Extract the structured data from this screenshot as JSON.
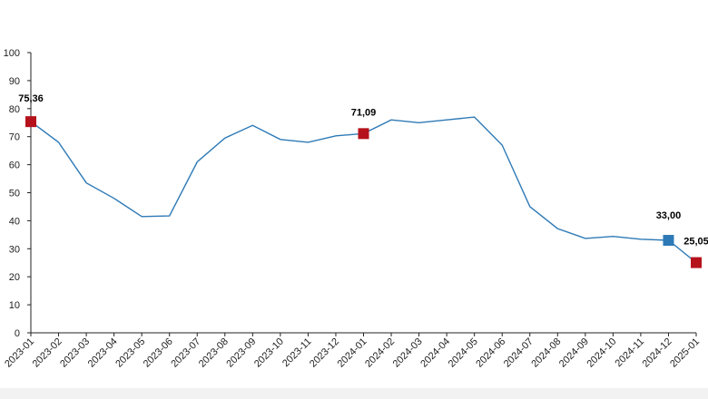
{
  "chart_data": {
    "type": "line",
    "title": "",
    "xlabel": "",
    "ylabel": "",
    "categories": [
      "2023-01",
      "2023-02",
      "2023-03",
      "2023-04",
      "2023-05",
      "2023-06",
      "2023-07",
      "2023-08",
      "2023-09",
      "2023-10",
      "2023-11",
      "2023-12",
      "2024-01",
      "2024-02",
      "2024-03",
      "2024-04",
      "2024-05",
      "2024-06",
      "2024-07",
      "2024-08",
      "2024-09",
      "2024-10",
      "2024-11",
      "2024-12",
      "2025-01"
    ],
    "series": [
      {
        "values": [
          75.36,
          68,
          53.5,
          48,
          41.5,
          41.7,
          61,
          69.5,
          74,
          69,
          68,
          70.3,
          71.09,
          76,
          75,
          76,
          77,
          67,
          45,
          37.2,
          33.7,
          34.4,
          33.4,
          33.0,
          25.05
        ],
        "color": "#2e7ab6"
      }
    ],
    "ylim": [
      0,
      100
    ],
    "yticks": [
      0,
      10,
      20,
      30,
      40,
      50,
      60,
      70,
      80,
      90,
      100
    ],
    "grid": false,
    "legend": "none",
    "markers": [
      {
        "category": "2023-01",
        "value": 75.36,
        "label": "75,36",
        "color": "#b5121b"
      },
      {
        "category": "2024-01",
        "value": 71.09,
        "label": "71,09",
        "color": "#b5121b"
      },
      {
        "category": "2024-12",
        "value": 33.0,
        "label": "33,00",
        "color": "#2e7ab6"
      },
      {
        "category": "2025-01",
        "value": 25.05,
        "label": "25,05",
        "color": "#b5121b"
      }
    ]
  }
}
